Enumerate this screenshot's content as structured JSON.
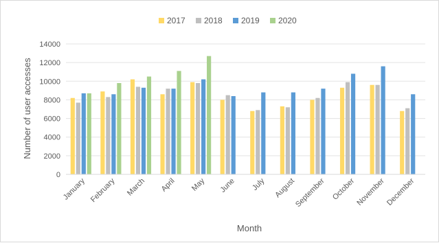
{
  "chart_data": {
    "type": "bar",
    "title": "",
    "xlabel": "Month",
    "ylabel": "Number of user accesses",
    "ylim": [
      0,
      14000
    ],
    "yticks": [
      0,
      2000,
      4000,
      6000,
      8000,
      10000,
      12000,
      14000
    ],
    "yticks_labels": [
      "0",
      "2000",
      "4000",
      "6000",
      "8000",
      "10000",
      "12000",
      "14000"
    ],
    "grid": true,
    "legend_position": "top",
    "categories": [
      "January",
      "February",
      "March",
      "April",
      "May",
      "June",
      "July",
      "August",
      "September",
      "October",
      "November",
      "December"
    ],
    "series": [
      {
        "name": "2017",
        "color": "#FFD966",
        "values": [
          8200,
          8900,
          10200,
          8600,
          9900,
          8000,
          6800,
          7300,
          8000,
          9300,
          9600,
          6800
        ]
      },
      {
        "name": "2018",
        "color": "#BFBFBF",
        "values": [
          7700,
          8300,
          9400,
          9200,
          9800,
          8500,
          6900,
          7200,
          8200,
          9900,
          9600,
          7100
        ]
      },
      {
        "name": "2019",
        "color": "#5B9BD5",
        "values": [
          8700,
          8600,
          9300,
          9200,
          10200,
          8400,
          8800,
          8800,
          9200,
          10800,
          11600,
          8600
        ]
      },
      {
        "name": "2020",
        "color": "#A9D18E",
        "values": [
          8700,
          9800,
          10500,
          11100,
          12700,
          null,
          null,
          null,
          null,
          null,
          null,
          null
        ]
      }
    ]
  }
}
